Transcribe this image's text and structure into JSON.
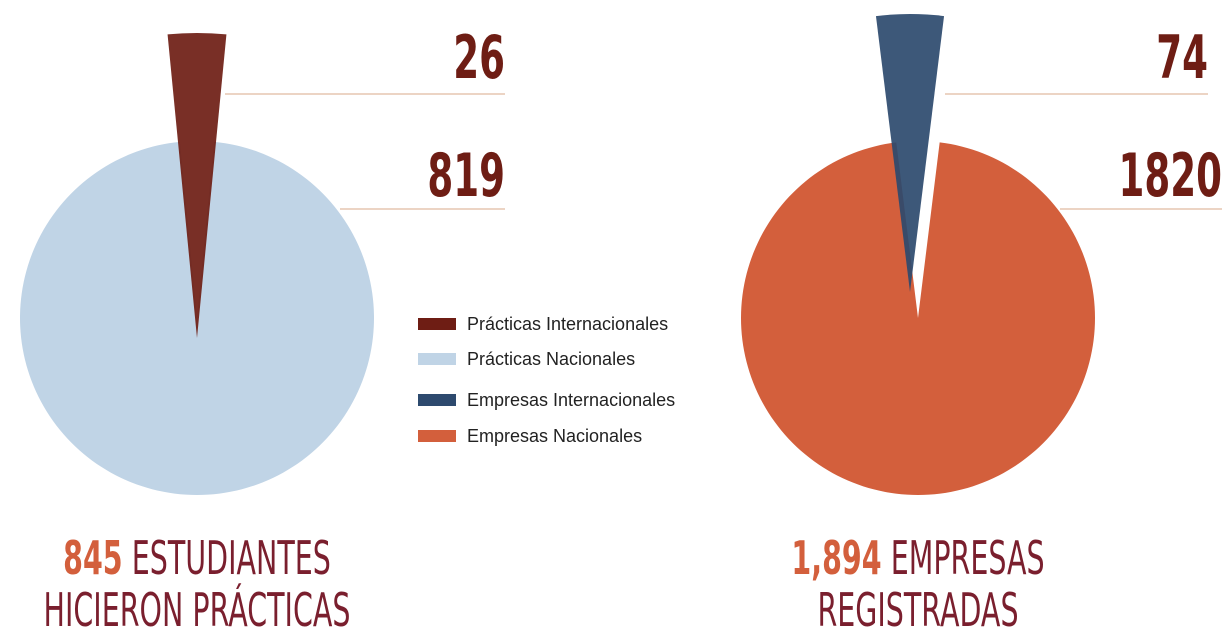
{
  "chart_data": [
    {
      "type": "pie",
      "categories": [
        "Prácticas Internacionales",
        "Prácticas Nacionales"
      ],
      "values": [
        26,
        819
      ],
      "colors": [
        "#6e1d14",
        "#c0d4e6"
      ],
      "total": 845,
      "caption": [
        "ESTUDIANTES",
        "HICIERON PRÁCTICAS"
      ]
    },
    {
      "type": "pie",
      "categories": [
        "Empresas Internacionales",
        "Empresas Nacionales"
      ],
      "values": [
        74,
        1820
      ],
      "colors": [
        "#2d4a6e",
        "#d35f3c"
      ],
      "total": {
        "value": 1894,
        "label": "1,894"
      },
      "caption": [
        "EMPRESAS",
        "REGISTRADAS"
      ]
    }
  ]
}
